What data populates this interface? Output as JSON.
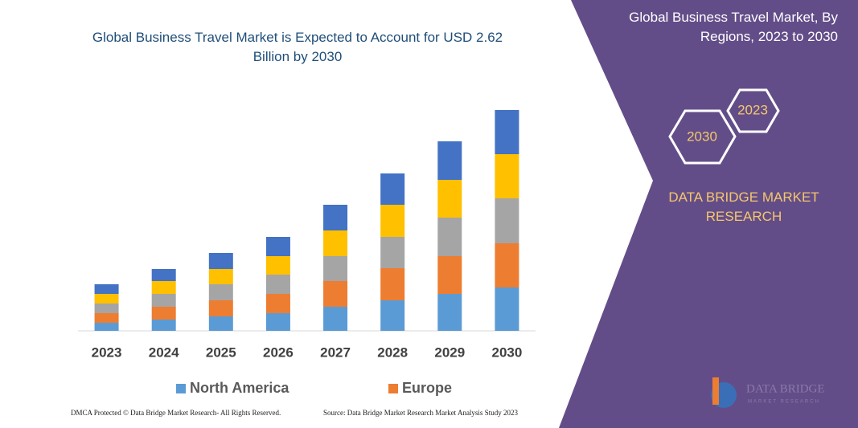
{
  "chart_data": {
    "type": "stacked-bar",
    "title": "Global Business Travel Market is Expected to Account for USD 2.62 Billion by 2030",
    "categories": [
      "2023",
      "2024",
      "2025",
      "2026",
      "2027",
      "2028",
      "2029",
      "2030"
    ],
    "series": [
      {
        "name": "North America",
        "color": "#5b9bd5",
        "values": [
          10,
          14,
          18,
          22,
          30,
          38,
          46,
          54
        ]
      },
      {
        "name": "Europe",
        "color": "#ed7d31",
        "values": [
          12,
          16,
          20,
          24,
          32,
          40,
          47,
          55
        ]
      },
      {
        "color": "#a5a5a5",
        "values": [
          12,
          16,
          20,
          24,
          31,
          39,
          48,
          56
        ]
      },
      {
        "color": "#ffc000",
        "values": [
          12,
          16,
          19,
          23,
          32,
          40,
          47,
          55
        ]
      },
      {
        "color": "#4472c4",
        "values": [
          12,
          15,
          20,
          24,
          32,
          39,
          48,
          55
        ]
      }
    ],
    "ylim": [
      0,
      300
    ]
  },
  "panel": {
    "title": "Global Business Travel Market, By Regions, 2023 to 2030",
    "hexagons": [
      "2023",
      "2030"
    ],
    "brand": "DATA BRIDGE MARKET RESEARCH",
    "logo": {
      "name": "DATA BRIDGE",
      "tagline": "MARKET RESEARCH"
    }
  },
  "footer": {
    "left": "DMCA Protected © Data Bridge Market Research- All Rights Reserved.",
    "right": "Source: Data Bridge Market Research Market Analysis Study 2023"
  }
}
